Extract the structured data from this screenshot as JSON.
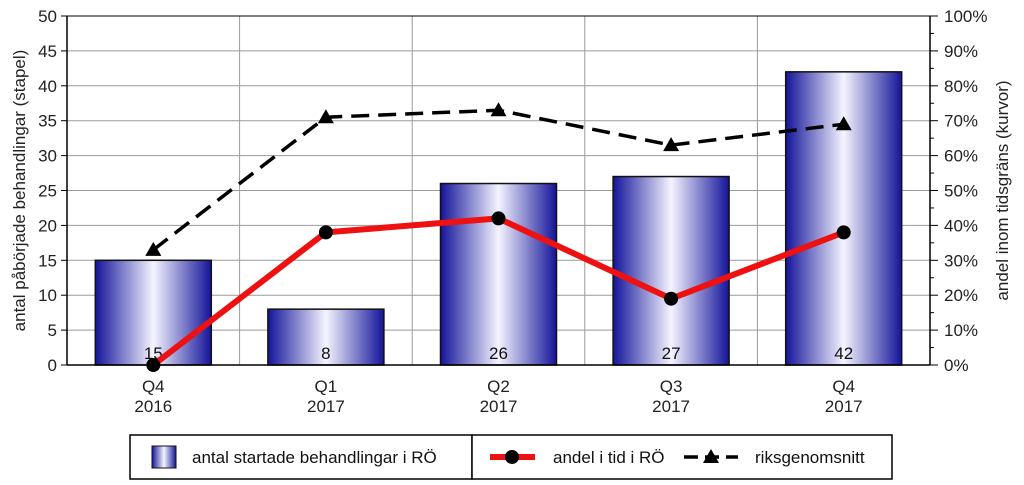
{
  "chart_data": {
    "type": "bar",
    "categories": [
      [
        "Q4",
        "2016"
      ],
      [
        "Q1",
        "2017"
      ],
      [
        "Q2",
        "2017"
      ],
      [
        "Q3",
        "2017"
      ],
      [
        "Q4",
        "2017"
      ]
    ],
    "series": [
      {
        "name": "antal startade behandlingar i RÖ",
        "type": "bar",
        "axis": "left",
        "values": [
          15,
          8,
          26,
          27,
          42
        ],
        "data_labels": [
          "15",
          "8",
          "26",
          "27",
          "42"
        ],
        "color": "#1a1aa8"
      },
      {
        "name": "andel i tid i RÖ",
        "type": "line",
        "axis": "right",
        "values": [
          0,
          38,
          42,
          19,
          38
        ],
        "color": "#ee1111",
        "marker": "circle"
      },
      {
        "name": "riksgenomsnitt",
        "type": "line",
        "axis": "right",
        "values": [
          33,
          71,
          73,
          63,
          69
        ],
        "color": "#000000",
        "marker": "triangle",
        "dash": "dashed"
      }
    ],
    "ylabel": "antal påbörjade behandlingar (stapel)",
    "y2label": "andel inom tidsgräns (kurvor)",
    "ylim": [
      0,
      50
    ],
    "y_ticks": [
      0,
      5,
      10,
      15,
      20,
      25,
      30,
      35,
      40,
      45,
      50
    ],
    "y2lim": [
      0,
      100
    ],
    "y2_ticks": [
      "0%",
      "10%",
      "20%",
      "30%",
      "40%",
      "50%",
      "60%",
      "70%",
      "80%",
      "90%",
      "100%"
    ],
    "grid": true,
    "legend_position": "bottom"
  }
}
